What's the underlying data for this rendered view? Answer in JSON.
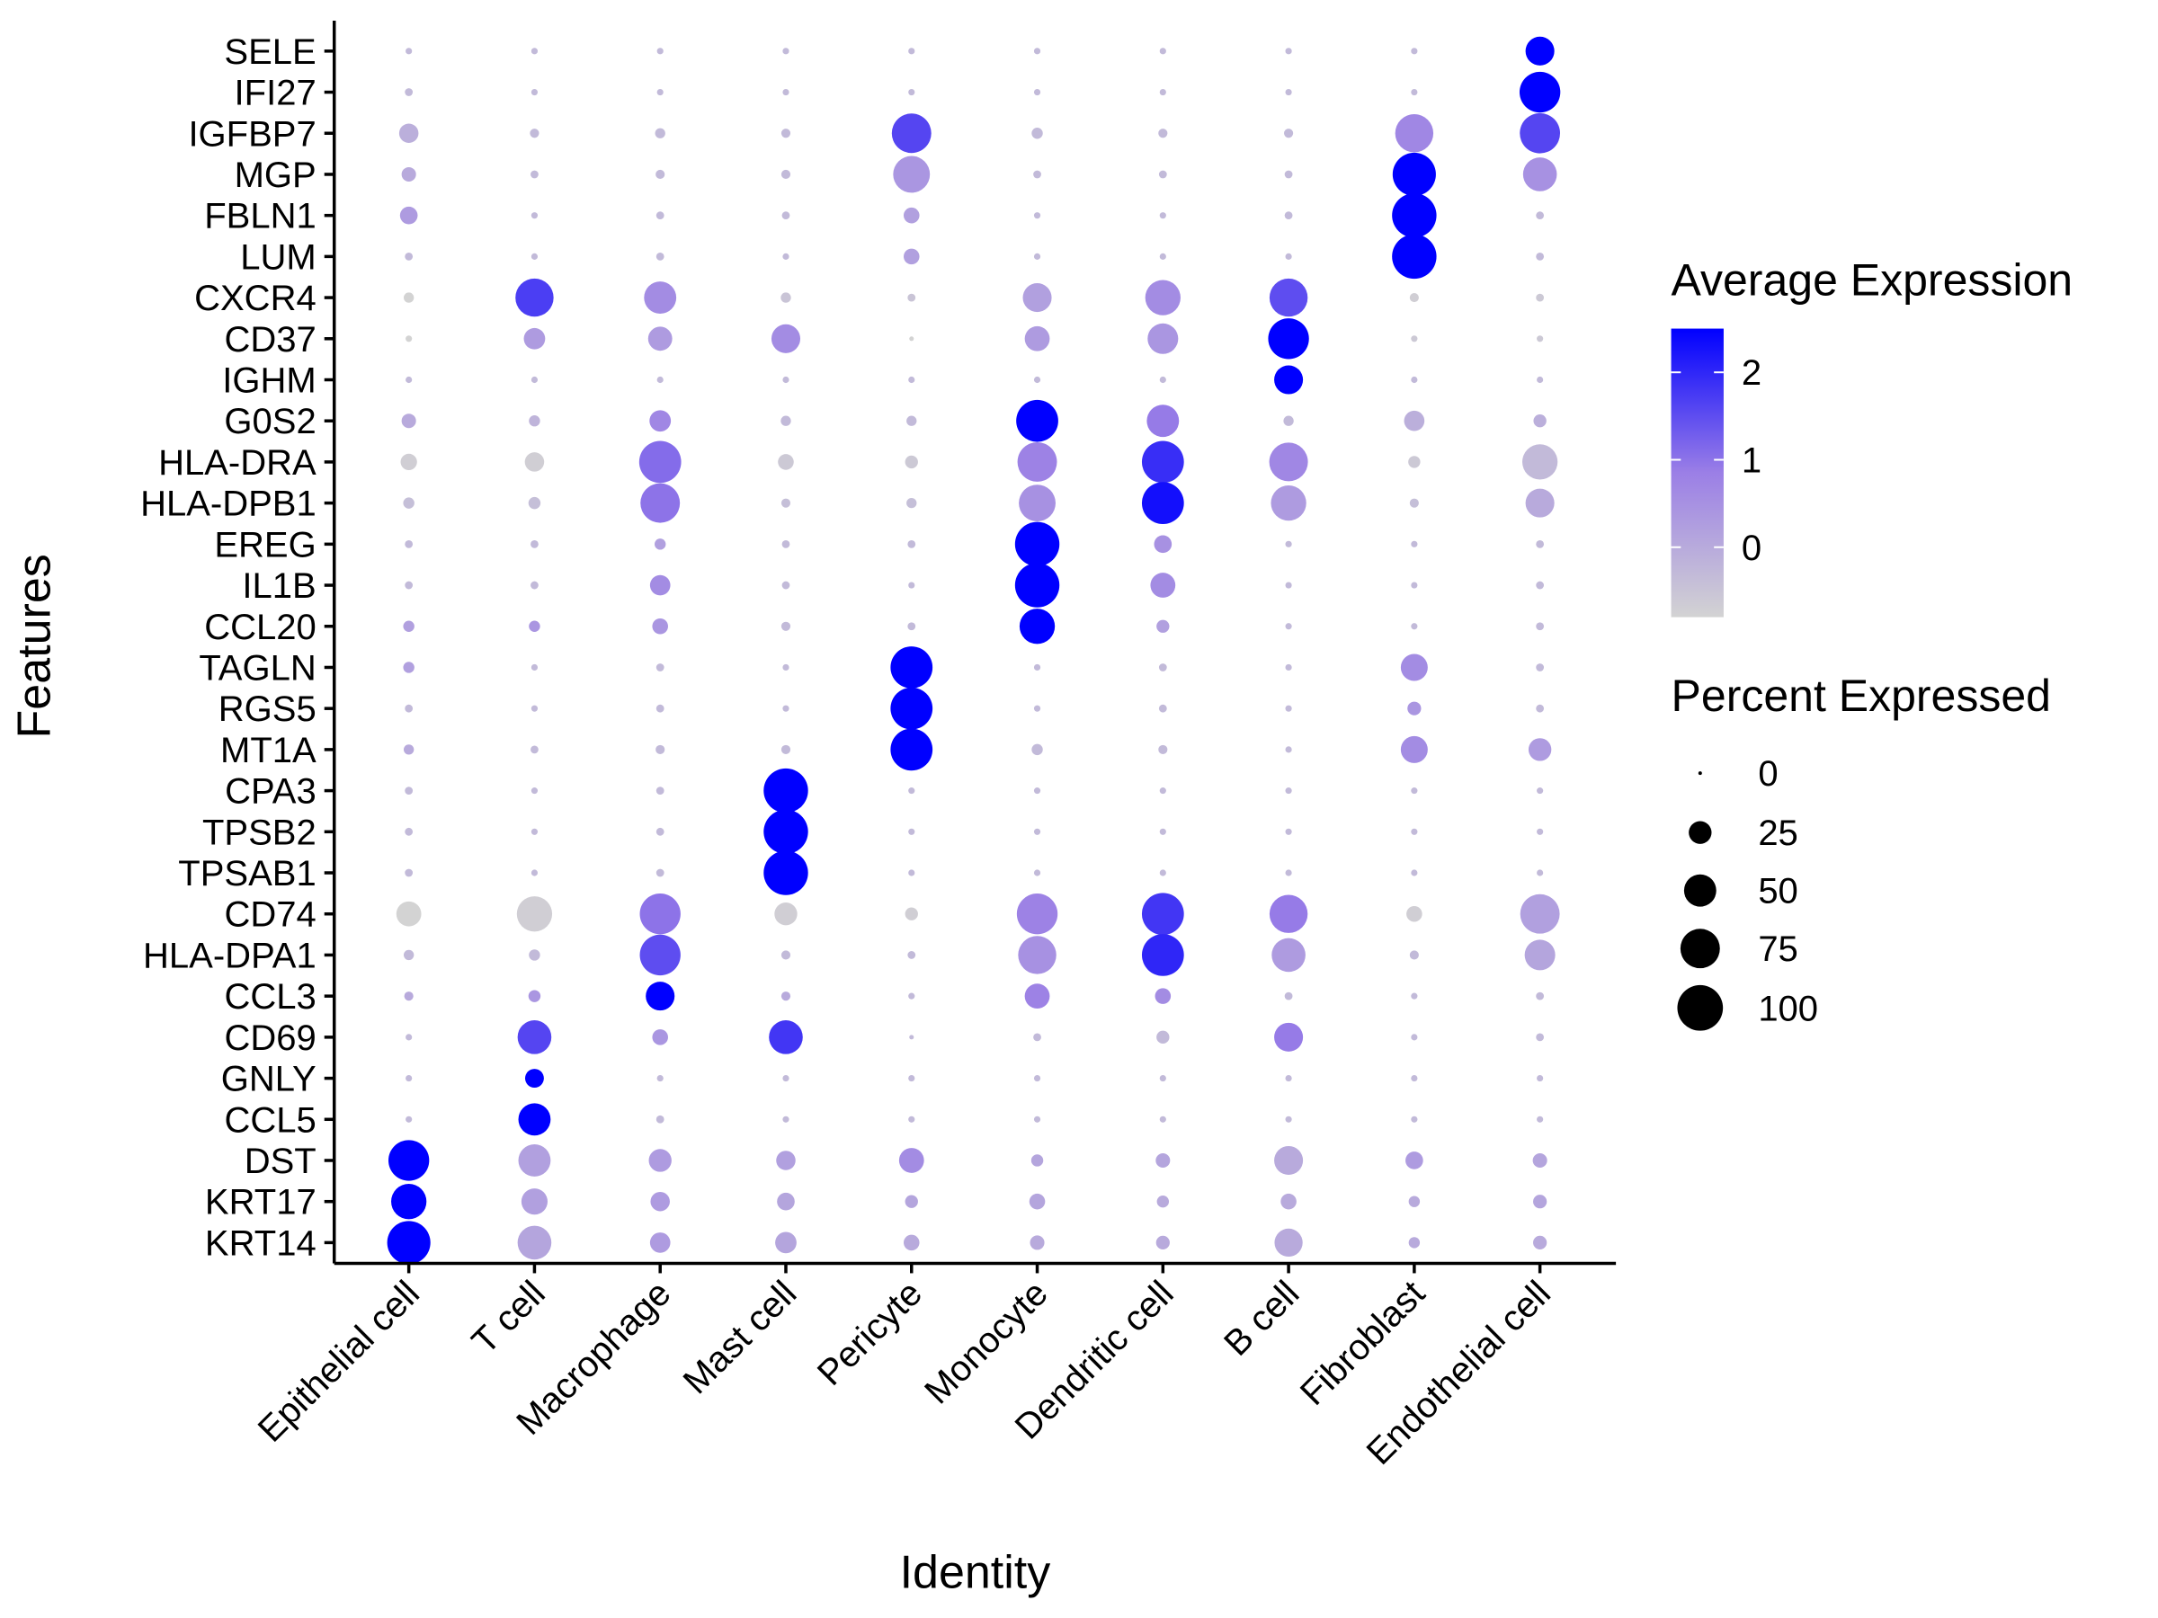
{
  "chart_data": {
    "type": "scatter",
    "subtype": "dotplot",
    "title": "",
    "xlabel": "Identity",
    "ylabel": "Features",
    "categories": [
      "Epithelial cell",
      "T cell",
      "Macrophage",
      "Mast cell",
      "Pericyte",
      "Monocyte",
      "Dendritic cell",
      "B cell",
      "Fibroblast",
      "Endothelial cell"
    ],
    "features": [
      "SELE",
      "IFI27",
      "IGFBP7",
      "MGP",
      "FBLN1",
      "LUM",
      "CXCR4",
      "CD37",
      "IGHM",
      "G0S2",
      "HLA-DRA",
      "HLA-DPB1",
      "EREG",
      "IL1B",
      "CCL20",
      "TAGLN",
      "RGS5",
      "MT1A",
      "CPA3",
      "TPSB2",
      "TPSAB1",
      "CD74",
      "HLA-DPA1",
      "CCL3",
      "CD69",
      "GNLY",
      "CCL5",
      "DST",
      "KRT17",
      "KRT14"
    ],
    "avg_expression": [
      [
        -0.3,
        -0.3,
        -0.3,
        -0.3,
        -0.3,
        -0.3,
        -0.3,
        -0.3,
        -0.3,
        2.5
      ],
      [
        -0.3,
        -0.3,
        -0.3,
        -0.3,
        -0.3,
        -0.3,
        -0.3,
        -0.3,
        -0.3,
        2.5
      ],
      [
        -0.1,
        -0.3,
        -0.3,
        -0.3,
        1.6,
        -0.3,
        -0.3,
        -0.3,
        0.7,
        1.6
      ],
      [
        0.0,
        -0.3,
        -0.3,
        -0.3,
        0.4,
        -0.3,
        -0.3,
        -0.3,
        2.5,
        0.5
      ],
      [
        0.3,
        -0.3,
        -0.3,
        -0.3,
        0.2,
        -0.3,
        -0.3,
        -0.3,
        2.5,
        -0.3
      ],
      [
        -0.3,
        -0.3,
        -0.3,
        -0.3,
        0.2,
        -0.3,
        -0.3,
        -0.3,
        2.5,
        -0.3
      ],
      [
        -0.8,
        1.7,
        0.6,
        -0.5,
        -0.5,
        0.2,
        0.6,
        1.5,
        -0.7,
        -0.6
      ],
      [
        -0.8,
        0.3,
        0.3,
        0.6,
        -0.8,
        0.3,
        0.4,
        2.5,
        -0.6,
        -0.6
      ],
      [
        -0.3,
        -0.3,
        -0.3,
        -0.3,
        -0.3,
        -0.3,
        -0.3,
        2.5,
        -0.3,
        -0.3
      ],
      [
        0.0,
        -0.2,
        0.7,
        -0.3,
        -0.3,
        2.5,
        0.9,
        -0.3,
        -0.1,
        -0.1
      ],
      [
        -0.7,
        -0.7,
        1.1,
        -0.6,
        -0.6,
        0.8,
        1.9,
        0.7,
        -0.6,
        -0.3
      ],
      [
        -0.4,
        -0.4,
        1.0,
        -0.4,
        -0.4,
        0.5,
        2.3,
        0.3,
        -0.4,
        0.0
      ],
      [
        -0.3,
        -0.3,
        0.2,
        -0.3,
        -0.3,
        2.5,
        0.5,
        -0.3,
        -0.3,
        -0.3
      ],
      [
        -0.3,
        -0.3,
        0.6,
        -0.3,
        -0.3,
        2.5,
        0.6,
        -0.3,
        -0.3,
        -0.3
      ],
      [
        0.2,
        0.4,
        0.4,
        -0.3,
        -0.3,
        2.5,
        0.2,
        -0.3,
        -0.3,
        -0.3
      ],
      [
        0.2,
        -0.3,
        -0.3,
        -0.3,
        2.5,
        -0.3,
        -0.3,
        -0.3,
        0.6,
        -0.3
      ],
      [
        -0.3,
        -0.3,
        -0.3,
        -0.3,
        2.5,
        -0.3,
        -0.3,
        -0.3,
        0.4,
        -0.3
      ],
      [
        0.0,
        -0.3,
        -0.3,
        -0.3,
        2.5,
        -0.3,
        -0.3,
        -0.3,
        0.6,
        0.3
      ],
      [
        -0.3,
        -0.3,
        -0.3,
        2.5,
        -0.3,
        -0.3,
        -0.3,
        -0.3,
        -0.3,
        -0.3
      ],
      [
        -0.3,
        -0.3,
        -0.3,
        2.5,
        -0.3,
        -0.3,
        -0.3,
        -0.3,
        -0.3,
        -0.3
      ],
      [
        -0.3,
        -0.3,
        -0.3,
        2.5,
        -0.3,
        -0.3,
        -0.3,
        -0.3,
        -0.3,
        -0.3
      ],
      [
        -0.8,
        -0.7,
        1.0,
        -0.7,
        -0.7,
        0.8,
        1.8,
        0.9,
        -0.7,
        0.2
      ],
      [
        -0.3,
        -0.3,
        1.5,
        -0.3,
        -0.3,
        0.5,
        2.0,
        0.3,
        -0.3,
        0.1
      ],
      [
        0.0,
        0.4,
        2.5,
        0.0,
        -0.3,
        0.8,
        0.6,
        -0.3,
        -0.3,
        -0.3
      ],
      [
        -0.3,
        1.6,
        0.4,
        1.8,
        -0.3,
        -0.3,
        -0.3,
        0.9,
        -0.3,
        -0.3
      ],
      [
        -0.3,
        2.5,
        -0.3,
        -0.3,
        -0.3,
        -0.3,
        -0.3,
        -0.3,
        -0.3,
        -0.3
      ],
      [
        -0.3,
        2.5,
        -0.3,
        -0.3,
        -0.3,
        -0.3,
        -0.3,
        -0.3,
        -0.3,
        -0.3
      ],
      [
        2.5,
        0.2,
        0.3,
        0.2,
        0.6,
        0.1,
        0.1,
        0.0,
        0.3,
        0.1
      ],
      [
        2.5,
        0.2,
        0.3,
        0.1,
        0.1,
        0.1,
        0.0,
        0.0,
        0.0,
        0.1
      ],
      [
        2.5,
        0.1,
        0.3,
        0.1,
        0.0,
        0.0,
        0.0,
        0.0,
        0.0,
        0.0
      ]
    ],
    "pct_expressed": [
      [
        2,
        2,
        2,
        2,
        2,
        2,
        2,
        2,
        2,
        40
      ],
      [
        3,
        2,
        2,
        2,
        2,
        2,
        2,
        2,
        2,
        80
      ],
      [
        18,
        4,
        5,
        4,
        75,
        6,
        4,
        4,
        70,
        78
      ],
      [
        10,
        3,
        4,
        4,
        65,
        3,
        3,
        3,
        90,
        55
      ],
      [
        15,
        2,
        3,
        3,
        12,
        2,
        2,
        3,
        95,
        3
      ],
      [
        3,
        2,
        3,
        2,
        12,
        2,
        2,
        2,
        95,
        3
      ],
      [
        5,
        70,
        50,
        5,
        3,
        40,
        60,
        70,
        4,
        3
      ],
      [
        2,
        22,
        28,
        40,
        1,
        30,
        45,
        80,
        2,
        2
      ],
      [
        2,
        2,
        2,
        2,
        2,
        2,
        2,
        40,
        2,
        2
      ],
      [
        10,
        6,
        22,
        5,
        5,
        85,
        50,
        5,
        20,
        8
      ],
      [
        13,
        18,
        85,
        12,
        8,
        75,
        85,
        72,
        7,
        60
      ],
      [
        6,
        7,
        75,
        4,
        5,
        65,
        85,
        60,
        4,
        40
      ],
      [
        3,
        3,
        6,
        3,
        3,
        95,
        15,
        2,
        2,
        3
      ],
      [
        3,
        3,
        20,
        3,
        2,
        95,
        30,
        2,
        2,
        3
      ],
      [
        6,
        6,
        12,
        4,
        3,
        60,
        8,
        2,
        2,
        3
      ],
      [
        6,
        2,
        3,
        2,
        85,
        2,
        3,
        2,
        35,
        3
      ],
      [
        3,
        2,
        3,
        2,
        85,
        2,
        3,
        2,
        9,
        3
      ],
      [
        5,
        3,
        4,
        4,
        85,
        6,
        4,
        2,
        35,
        25
      ],
      [
        3,
        2,
        3,
        95,
        2,
        2,
        2,
        2,
        2,
        2
      ],
      [
        3,
        2,
        3,
        95,
        2,
        2,
        2,
        2,
        2,
        2
      ],
      [
        3,
        2,
        3,
        95,
        2,
        2,
        2,
        2,
        2,
        2
      ],
      [
        30,
        60,
        80,
        25,
        8,
        80,
        85,
        70,
        12,
        75
      ],
      [
        5,
        6,
        80,
        4,
        3,
        70,
        85,
        55,
        4,
        45
      ],
      [
        4,
        7,
        40,
        4,
        2,
        30,
        12,
        3,
        2,
        3
      ],
      [
        2,
        55,
        12,
        55,
        1,
        3,
        8,
        40,
        2,
        3
      ],
      [
        2,
        17,
        2,
        2,
        2,
        2,
        2,
        2,
        2,
        2
      ],
      [
        2,
        50,
        3,
        2,
        2,
        2,
        2,
        2,
        2,
        2
      ],
      [
        80,
        50,
        25,
        18,
        30,
        7,
        10,
        40,
        15,
        10
      ],
      [
        60,
        33,
        18,
        15,
        8,
        12,
        7,
        12,
        6,
        9
      ],
      [
        90,
        55,
        20,
        22,
        12,
        10,
        9,
        38,
        6,
        9
      ]
    ],
    "color_scale": {
      "low": "#d3d3d3",
      "high": "#0000ff",
      "domain": [
        -0.8,
        2.5
      ],
      "ticks": [
        0,
        1,
        2
      ]
    },
    "size_scale": {
      "domain": [
        0,
        100
      ],
      "ticks": [
        0,
        25,
        50,
        75,
        100
      ]
    },
    "legend": {
      "color_title": "Average Expression",
      "size_title": "Percent Expressed",
      "color_tick_labels": [
        "2",
        "1",
        "0"
      ],
      "size_tick_labels": [
        "0",
        "25",
        "50",
        "75",
        "100"
      ],
      "placement": "right"
    },
    "grid": false
  }
}
